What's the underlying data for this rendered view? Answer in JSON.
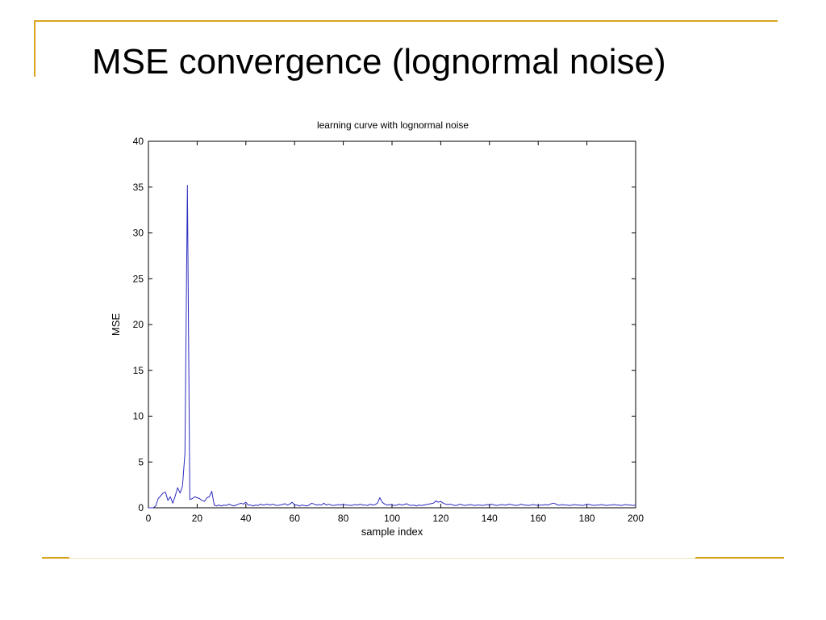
{
  "slide": {
    "title": "MSE convergence (lognormal noise)",
    "accent_color": "#d9a520"
  },
  "chart_data": {
    "type": "line",
    "title": "learning curve with lognormal noise",
    "xlabel": "sample index",
    "ylabel": "MSE",
    "xlim": [
      0,
      200
    ],
    "ylim": [
      0,
      40
    ],
    "xticks": [
      "0",
      "20",
      "40",
      "60",
      "80",
      "100",
      "120",
      "140",
      "160",
      "180",
      "200"
    ],
    "yticks": [
      "0",
      "5",
      "10",
      "15",
      "20",
      "25",
      "30",
      "35",
      "40"
    ],
    "grid": false,
    "line_color": "#2b2bbf",
    "series": [
      {
        "x": [
          0,
          1,
          2,
          3,
          4,
          5,
          6,
          7,
          8,
          9,
          10,
          11,
          12,
          13,
          14,
          15,
          16,
          17,
          18,
          19,
          20,
          21,
          22,
          23,
          24,
          25,
          26,
          27,
          28,
          29,
          30,
          31,
          32,
          33,
          34,
          35,
          36,
          37,
          38,
          39,
          40,
          41,
          42,
          43,
          44,
          45,
          46,
          47,
          48,
          49,
          50,
          51,
          52,
          53,
          54,
          55,
          56,
          57,
          58,
          59,
          60,
          61,
          62,
          63,
          64,
          65,
          66,
          67,
          68,
          69,
          70,
          71,
          72,
          73,
          74,
          75,
          76,
          77,
          78,
          79,
          80,
          81,
          82,
          83,
          84,
          85,
          86,
          87,
          88,
          89,
          90,
          91,
          92,
          93,
          94,
          95,
          96,
          97,
          98,
          99,
          100,
          101,
          102,
          103,
          104,
          105,
          106,
          107,
          108,
          109,
          110,
          111,
          112,
          113,
          114,
          115,
          116,
          117,
          118,
          119,
          120,
          121,
          122,
          123,
          124,
          125,
          126,
          127,
          128,
          129,
          130,
          131,
          132,
          133,
          134,
          135,
          136,
          137,
          138,
          139,
          140,
          141,
          142,
          143,
          144,
          145,
          146,
          147,
          148,
          149,
          150,
          151,
          152,
          153,
          154,
          155,
          156,
          157,
          158,
          159,
          160,
          161,
          162,
          163,
          164,
          165,
          166,
          167,
          168,
          169,
          170,
          171,
          172,
          173,
          174,
          175,
          176,
          177,
          178,
          179,
          180,
          181,
          182,
          183,
          184,
          185,
          186,
          187,
          188,
          189,
          190,
          191,
          192,
          193,
          194,
          195,
          196,
          197,
          198,
          199,
          200
        ],
        "y": [
          0,
          0,
          0,
          0.2,
          1.0,
          1.3,
          1.6,
          1.7,
          0.8,
          1.2,
          0.5,
          1.3,
          2.2,
          1.6,
          2.4,
          6.0,
          35.2,
          0.9,
          1.0,
          1.2,
          1.1,
          1.0,
          0.8,
          0.7,
          1.1,
          1.2,
          1.8,
          0.3,
          0.2,
          0.3,
          0.2,
          0.3,
          0.25,
          0.4,
          0.3,
          0.2,
          0.3,
          0.4,
          0.5,
          0.4,
          0.6,
          0.3,
          0.3,
          0.2,
          0.3,
          0.25,
          0.4,
          0.3,
          0.35,
          0.4,
          0.3,
          0.4,
          0.3,
          0.25,
          0.3,
          0.35,
          0.45,
          0.3,
          0.4,
          0.6,
          0.3,
          0.3,
          0.2,
          0.3,
          0.25,
          0.2,
          0.3,
          0.5,
          0.4,
          0.3,
          0.35,
          0.3,
          0.5,
          0.3,
          0.4,
          0.3,
          0.25,
          0.3,
          0.35,
          0.3,
          0.4,
          0.3,
          0.3,
          0.25,
          0.3,
          0.35,
          0.3,
          0.4,
          0.3,
          0.3,
          0.25,
          0.4,
          0.3,
          0.35,
          0.5,
          1.1,
          0.6,
          0.4,
          0.3,
          0.35,
          0.3,
          0.25,
          0.3,
          0.4,
          0.3,
          0.35,
          0.45,
          0.3,
          0.25,
          0.3,
          0.2,
          0.3,
          0.25,
          0.3,
          0.35,
          0.4,
          0.45,
          0.5,
          0.75,
          0.6,
          0.7,
          0.5,
          0.4,
          0.35,
          0.4,
          0.3,
          0.25,
          0.3,
          0.4,
          0.3,
          0.25,
          0.3,
          0.35,
          0.3,
          0.25,
          0.3,
          0.3,
          0.25,
          0.3,
          0.35,
          0.3,
          0.4,
          0.3,
          0.25,
          0.3,
          0.35,
          0.3,
          0.3,
          0.4,
          0.35,
          0.3,
          0.25,
          0.3,
          0.4,
          0.3,
          0.3,
          0.25,
          0.3,
          0.35,
          0.3,
          0.25,
          0.3,
          0.3,
          0.35,
          0.3,
          0.4,
          0.5,
          0.45,
          0.3,
          0.3,
          0.35,
          0.3,
          0.3,
          0.25,
          0.3,
          0.35,
          0.3,
          0.3,
          0.25,
          0.3,
          0.4,
          0.35,
          0.3,
          0.25,
          0.3,
          0.3,
          0.35,
          0.3,
          0.25,
          0.3,
          0.3,
          0.35,
          0.3,
          0.3,
          0.25,
          0.3,
          0.35,
          0.3,
          0.3,
          0.25,
          0.3
        ]
      }
    ]
  }
}
